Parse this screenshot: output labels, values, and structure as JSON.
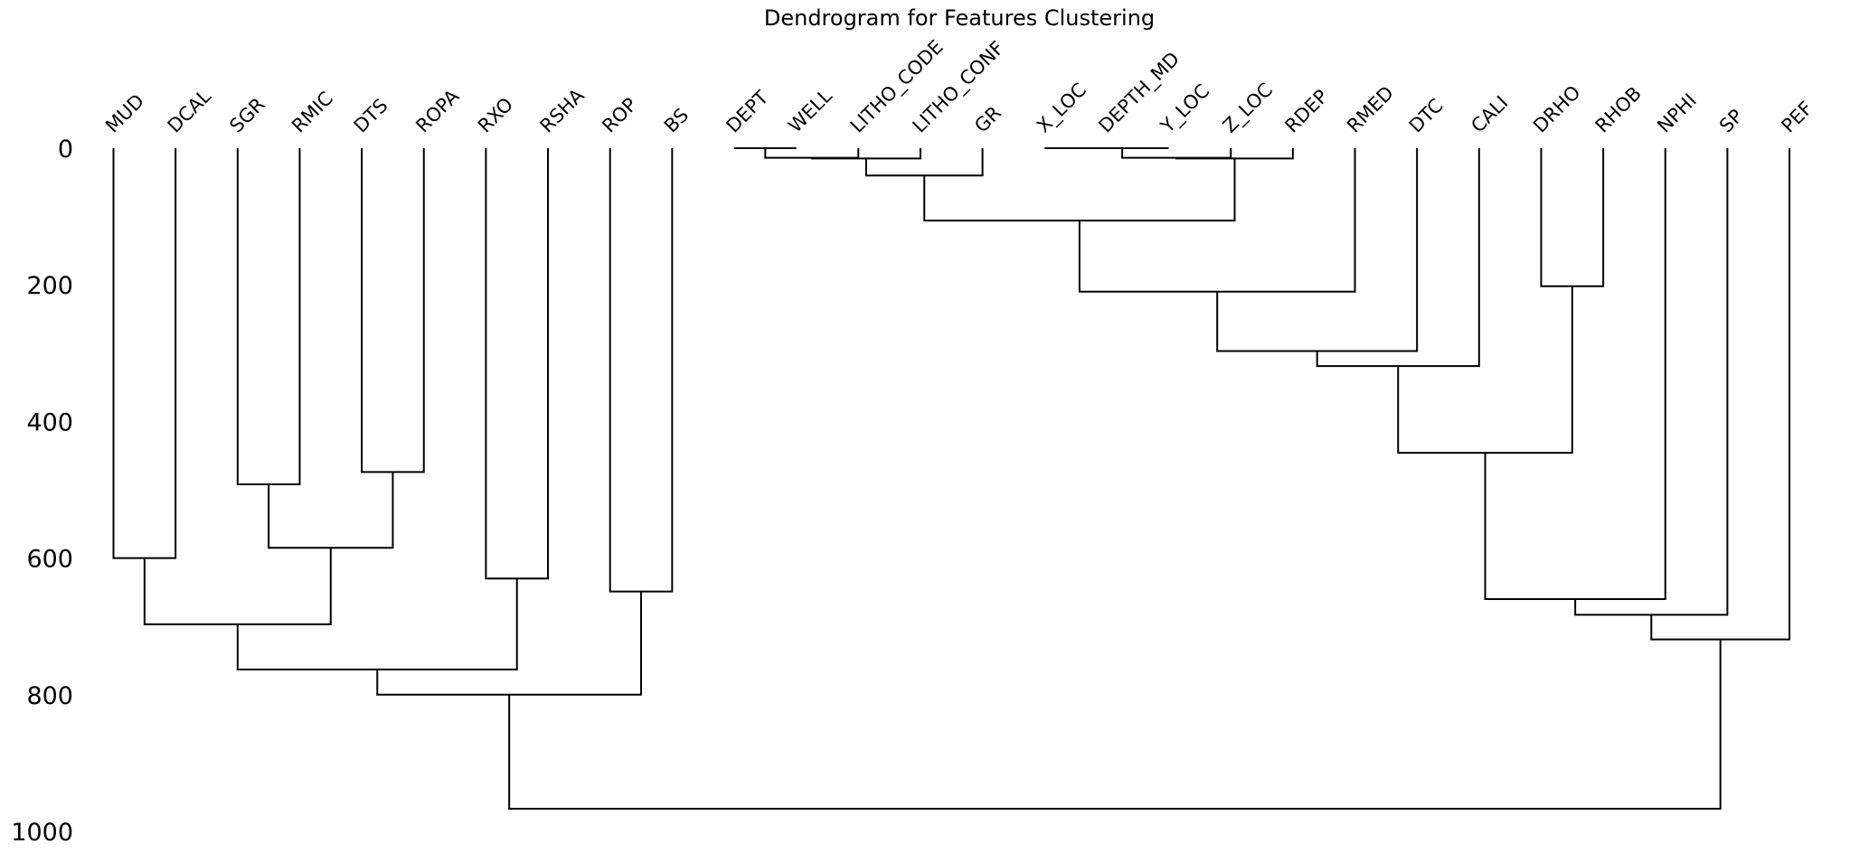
{
  "chart_data": {
    "type": "dendrogram",
    "title": "Dendrogram for Features Clustering",
    "xlabel": "",
    "ylabel": "",
    "orientation": "top",
    "ylim": [
      0,
      1000
    ],
    "yticks": [
      {
        "value": 0,
        "label": "0"
      },
      {
        "value": 200,
        "label": "200"
      },
      {
        "value": 400,
        "label": "400"
      },
      {
        "value": 600,
        "label": "600"
      },
      {
        "value": 800,
        "label": "800"
      },
      {
        "value": 1000,
        "label": "1000"
      }
    ],
    "grid": false,
    "line_color": "#000000",
    "leaves": [
      "MUD",
      "DCAL",
      "SGR",
      "RMIC",
      "DTS",
      "ROPA",
      "RXO",
      "RSHA",
      "ROP",
      "BS",
      "DEPT",
      "WELL",
      "LITHO_CODE",
      "LITHO_CONF",
      "GR",
      "X_LOC",
      "DEPTH_MD",
      "Y_LOC",
      "Z_LOC",
      "RDEP",
      "RMED",
      "DTC",
      "CALI",
      "DRHO",
      "RHOB",
      "NPHI",
      "SP",
      "PEF"
    ],
    "merges": [
      {
        "left": "DEPT",
        "right": "WELL",
        "height": 0
      },
      {
        "left": "X_LOC",
        "right": "DEPTH_MD",
        "height": 0
      },
      {
        "left": "#1",
        "right": "Y_LOC",
        "height": 0
      },
      {
        "left": "#0",
        "right": "LITHO_CODE",
        "height": 14
      },
      {
        "left": "#2",
        "right": "Z_LOC",
        "height": 14
      },
      {
        "left": "#3",
        "right": "LITHO_CONF",
        "height": 15
      },
      {
        "left": "#4",
        "right": "RDEP",
        "height": 15
      },
      {
        "left": "#5",
        "right": "GR",
        "height": 40
      },
      {
        "left": "#7",
        "right": "#6",
        "height": 106
      },
      {
        "left": "DRHO",
        "right": "RHOB",
        "height": 202
      },
      {
        "left": "#8",
        "right": "RMED",
        "height": 210
      },
      {
        "left": "#10",
        "right": "DTC",
        "height": 297
      },
      {
        "left": "#11",
        "right": "CALI",
        "height": 319
      },
      {
        "left": "#12",
        "right": "#9",
        "height": 446
      },
      {
        "left": "DTS",
        "right": "ROPA",
        "height": 474
      },
      {
        "left": "SGR",
        "right": "RMIC",
        "height": 492
      },
      {
        "left": "#15",
        "right": "#14",
        "height": 585
      },
      {
        "left": "MUD",
        "right": "DCAL",
        "height": 600
      },
      {
        "left": "RXO",
        "right": "RSHA",
        "height": 630
      },
      {
        "left": "ROP",
        "right": "BS",
        "height": 649
      },
      {
        "left": "#13",
        "right": "NPHI",
        "height": 660
      },
      {
        "left": "#20",
        "right": "SP",
        "height": 683
      },
      {
        "left": "#17",
        "right": "#16",
        "height": 697
      },
      {
        "left": "#21",
        "right": "PEF",
        "height": 719
      },
      {
        "left": "#22",
        "right": "#18",
        "height": 763
      },
      {
        "left": "#24",
        "right": "#19",
        "height": 800
      },
      {
        "left": "#25",
        "right": "#23",
        "height": 967
      }
    ]
  }
}
